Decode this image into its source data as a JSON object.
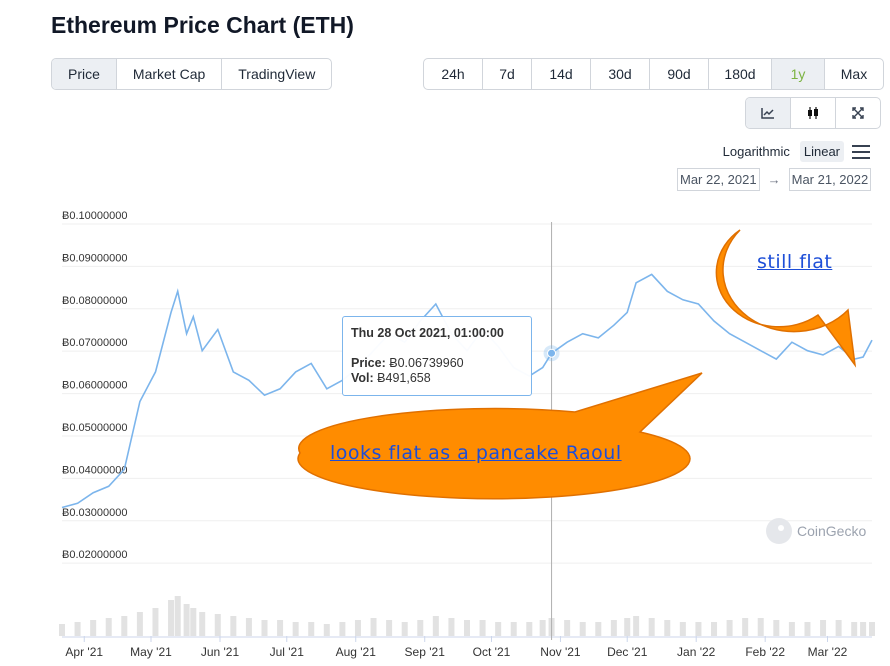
{
  "page": {
    "title": "Ethereum Price Chart (ETH)"
  },
  "tabs": [
    {
      "label": "Price",
      "active": true
    },
    {
      "label": "Market Cap",
      "active": false
    },
    {
      "label": "TradingView",
      "active": false
    }
  ],
  "ranges": [
    {
      "label": "24h",
      "active": false
    },
    {
      "label": "7d",
      "active": false
    },
    {
      "label": "14d",
      "active": false
    },
    {
      "label": "30d",
      "active": false
    },
    {
      "label": "90d",
      "active": false
    },
    {
      "label": "180d",
      "active": false
    },
    {
      "label": "1y",
      "active": true
    },
    {
      "label": "Max",
      "active": false
    }
  ],
  "tools": [
    {
      "icon": "line-chart-icon",
      "active": true
    },
    {
      "icon": "candlestick-icon",
      "active": false
    },
    {
      "icon": "expand-icon",
      "active": false
    }
  ],
  "scale": {
    "logarithmic": "Logarithmic",
    "linear": "Linear",
    "selected": "Linear"
  },
  "date_range": {
    "from": "Mar 22, 2021",
    "arrow": "→",
    "to": "Mar 21, 2022"
  },
  "tooltip": {
    "date": "Thu 28 Oct 2021, 01:00:00",
    "price_label": "Price:",
    "price_value": "Ƀ0.06739960",
    "vol_label": "Vol:",
    "vol_value": "Ƀ491,658"
  },
  "watermark": "CoinGecko",
  "annotations": {
    "bubble1": "looks flat as a pancake Raoul",
    "bubble2": "still flat"
  },
  "colors": {
    "line": "#7cb5ec",
    "bubble_fill": "#ff8c00",
    "bubble_stroke": "#e07000",
    "active_range": "#7cb342",
    "annotation_text": "#1d4ed8"
  },
  "chart_data": {
    "type": "line",
    "title": "",
    "xlabel": "",
    "ylabel": "",
    "y_tick_labels": [
      "Ƀ0.10000000",
      "Ƀ0.09000000",
      "Ƀ0.08000000",
      "Ƀ0.07000000",
      "Ƀ0.06000000",
      "Ƀ0.05000000",
      "Ƀ0.04000000",
      "Ƀ0.03000000",
      "Ƀ0.02000000"
    ],
    "y_ticks": [
      0.1,
      0.09,
      0.08,
      0.07,
      0.06,
      0.05,
      0.04,
      0.03,
      0.02
    ],
    "ylim": [
      0.0165,
      0.1
    ],
    "x_tick_labels": [
      "Apr '21",
      "May '21",
      "Jun '21",
      "Jul '21",
      "Aug '21",
      "Sep '21",
      "Oct '21",
      "Nov '21",
      "Dec '21",
      "Jan '22",
      "Feb '22",
      "Mar '22"
    ],
    "x_ticks": [
      "2021-04-01",
      "2021-05-01",
      "2021-06-01",
      "2021-07-01",
      "2021-08-01",
      "2021-09-01",
      "2021-10-01",
      "2021-11-01",
      "2021-12-01",
      "2022-01-01",
      "2022-02-01",
      "2022-03-01"
    ],
    "xlim": [
      "2021-03-22",
      "2022-03-21"
    ],
    "grid": true,
    "series": [
      {
        "name": "",
        "x": [
          "2021-03-22",
          "2021-03-29",
          "2021-04-05",
          "2021-04-12",
          "2021-04-19",
          "2021-04-26",
          "2021-05-03",
          "2021-05-10",
          "2021-05-13",
          "2021-05-17",
          "2021-05-20",
          "2021-05-24",
          "2021-05-31",
          "2021-06-07",
          "2021-06-14",
          "2021-06-21",
          "2021-06-28",
          "2021-07-05",
          "2021-07-12",
          "2021-07-19",
          "2021-07-26",
          "2021-08-02",
          "2021-08-09",
          "2021-08-16",
          "2021-08-23",
          "2021-08-30",
          "2021-09-06",
          "2021-09-13",
          "2021-09-20",
          "2021-09-27",
          "2021-10-04",
          "2021-10-11",
          "2021-10-18",
          "2021-10-24",
          "2021-10-28",
          "2021-11-04",
          "2021-11-11",
          "2021-11-18",
          "2021-11-25",
          "2021-12-01",
          "2021-12-05",
          "2021-12-12",
          "2021-12-19",
          "2021-12-26",
          "2022-01-02",
          "2022-01-09",
          "2022-01-16",
          "2022-01-23",
          "2022-01-30",
          "2022-02-06",
          "2022-02-13",
          "2022-02-20",
          "2022-02-27",
          "2022-03-06",
          "2022-03-13",
          "2022-03-17",
          "2022-03-21"
        ],
        "values": [
          0.031,
          0.032,
          0.0345,
          0.036,
          0.04,
          0.056,
          0.063,
          0.077,
          0.082,
          0.072,
          0.076,
          0.068,
          0.073,
          0.063,
          0.061,
          0.0575,
          0.059,
          0.063,
          0.065,
          0.059,
          0.061,
          0.064,
          0.068,
          0.072,
          0.07,
          0.075,
          0.079,
          0.072,
          0.068,
          0.073,
          0.069,
          0.064,
          0.062,
          0.064,
          0.0674,
          0.07,
          0.072,
          0.071,
          0.074,
          0.077,
          0.084,
          0.086,
          0.082,
          0.08,
          0.079,
          0.075,
          0.072,
          0.07,
          0.068,
          0.066,
          0.07,
          0.068,
          0.067,
          0.069,
          0.066,
          0.0665,
          0.0705
        ]
      }
    ],
    "volume": [
      0.3,
      0.35,
      0.4,
      0.45,
      0.5,
      0.6,
      0.7,
      0.9,
      1.0,
      0.8,
      0.7,
      0.6,
      0.55,
      0.5,
      0.45,
      0.4,
      0.4,
      0.35,
      0.35,
      0.3,
      0.35,
      0.4,
      0.45,
      0.4,
      0.35,
      0.4,
      0.5,
      0.45,
      0.4,
      0.4,
      0.35,
      0.35,
      0.35,
      0.4,
      0.45,
      0.4,
      0.35,
      0.35,
      0.4,
      0.45,
      0.5,
      0.45,
      0.4,
      0.35,
      0.35,
      0.35,
      0.4,
      0.45,
      0.45,
      0.4,
      0.35,
      0.35,
      0.4,
      0.4,
      0.35,
      0.35,
      0.35
    ]
  }
}
